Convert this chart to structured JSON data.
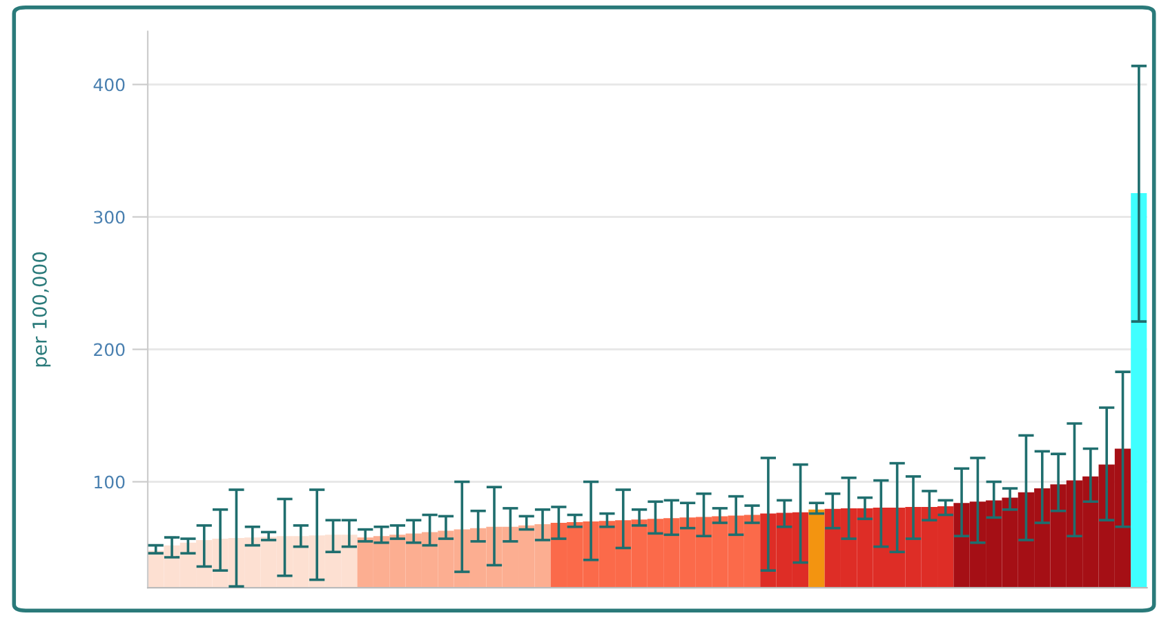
{
  "chart_data": {
    "type": "bar",
    "ylabel": "per 100,000",
    "categories": [
      null,
      null,
      null,
      null,
      null,
      null,
      null,
      null,
      null,
      null,
      null,
      null,
      null,
      null,
      null,
      null,
      null,
      null,
      null,
      null,
      null,
      null,
      null,
      null,
      null,
      null,
      null,
      null,
      null,
      null,
      null,
      null,
      null,
      null,
      null,
      null,
      null,
      null,
      null,
      null,
      null,
      null,
      null,
      null,
      null,
      null,
      null,
      null,
      null,
      null,
      null,
      null,
      null,
      null,
      null,
      null,
      null,
      null,
      null,
      null,
      null,
      null
    ],
    "values": [
      48,
      52,
      54,
      56,
      57,
      57.5,
      58,
      58.5,
      59,
      59,
      59.5,
      60,
      60,
      58,
      59,
      60,
      61,
      62,
      63,
      64,
      65,
      66,
      66,
      67,
      68,
      69,
      69.5,
      70,
      70.5,
      71,
      71.5,
      72,
      72.5,
      73,
      73.5,
      74,
      74.5,
      75,
      76,
      76.5,
      77,
      79,
      79.5,
      80,
      80,
      80.5,
      80.5,
      81,
      81,
      81.5,
      84,
      85,
      86,
      88,
      92,
      95,
      98,
      101,
      104,
      113,
      125,
      318
    ],
    "errors": [
      [
        46,
        52
      ],
      [
        43,
        58
      ],
      [
        46,
        57
      ],
      [
        36,
        67
      ],
      [
        33,
        79
      ],
      [
        21,
        94
      ],
      [
        52,
        66
      ],
      [
        56,
        62
      ],
      [
        29,
        87
      ],
      [
        51,
        67
      ],
      [
        26,
        94
      ],
      [
        47,
        71
      ],
      [
        51,
        71
      ],
      [
        55,
        64
      ],
      [
        54,
        66
      ],
      [
        57,
        67
      ],
      [
        54,
        71
      ],
      [
        52,
        75
      ],
      [
        57,
        74
      ],
      [
        32,
        100
      ],
      [
        55,
        78
      ],
      [
        37,
        96
      ],
      [
        55,
        80
      ],
      [
        64,
        74
      ],
      [
        56,
        79
      ],
      [
        57,
        81
      ],
      [
        66,
        75
      ],
      [
        41,
        100
      ],
      [
        66,
        76
      ],
      [
        50,
        94
      ],
      [
        67,
        79
      ],
      [
        61,
        85
      ],
      [
        60,
        86
      ],
      [
        65,
        84
      ],
      [
        59,
        91
      ],
      [
        69,
        80
      ],
      [
        60,
        89
      ],
      [
        69,
        82
      ],
      [
        33,
        118
      ],
      [
        66,
        86
      ],
      [
        39,
        113
      ],
      [
        76,
        84
      ],
      [
        65,
        91
      ],
      [
        57,
        103
      ],
      [
        72,
        88
      ],
      [
        51,
        101
      ],
      [
        47,
        114
      ],
      [
        57,
        104
      ],
      [
        71,
        93
      ],
      [
        75,
        86
      ],
      [
        59,
        110
      ],
      [
        54,
        118
      ],
      [
        73,
        100
      ],
      [
        79,
        95
      ],
      [
        56,
        135
      ],
      [
        69,
        123
      ],
      [
        78,
        121
      ],
      [
        59,
        144
      ],
      [
        85,
        125
      ],
      [
        71,
        156
      ],
      [
        66,
        183
      ],
      [
        221,
        414
      ]
    ],
    "colors": [
      "#fde0d2",
      "#fde0d2",
      "#fde0d2",
      "#fde0d2",
      "#fde0d2",
      "#fde0d2",
      "#fde0d2",
      "#fde0d2",
      "#fde0d2",
      "#fde0d2",
      "#fde0d2",
      "#fde0d2",
      "#fde0d2",
      "#fcae91",
      "#fcae91",
      "#fcae91",
      "#fcae91",
      "#fcae91",
      "#fcae91",
      "#fcae91",
      "#fcae91",
      "#fcae91",
      "#fcae91",
      "#fcae91",
      "#fcae91",
      "#fb6a4a",
      "#fb6a4a",
      "#fb6a4a",
      "#fb6a4a",
      "#fb6a4a",
      "#fb6a4a",
      "#fb6a4a",
      "#fb6a4a",
      "#fb6a4a",
      "#fb6a4a",
      "#fb6a4a",
      "#fb6a4a",
      "#fb6a4a",
      "#de2d26",
      "#de2d26",
      "#de2d26",
      "#f39410",
      "#de2d26",
      "#de2d26",
      "#de2d26",
      "#de2d26",
      "#de2d26",
      "#de2d26",
      "#de2d26",
      "#de2d26",
      "#a50f15",
      "#a50f15",
      "#a50f15",
      "#a50f15",
      "#a50f15",
      "#a50f15",
      "#a50f15",
      "#a50f15",
      "#a50f15",
      "#a50f15",
      "#a50f15",
      "#40ffff"
    ],
    "ylim": [
      20,
      440
    ],
    "yticks": [
      100,
      200,
      300,
      400
    ],
    "tick_labels": "y",
    "grid": "y",
    "legend": false
  }
}
